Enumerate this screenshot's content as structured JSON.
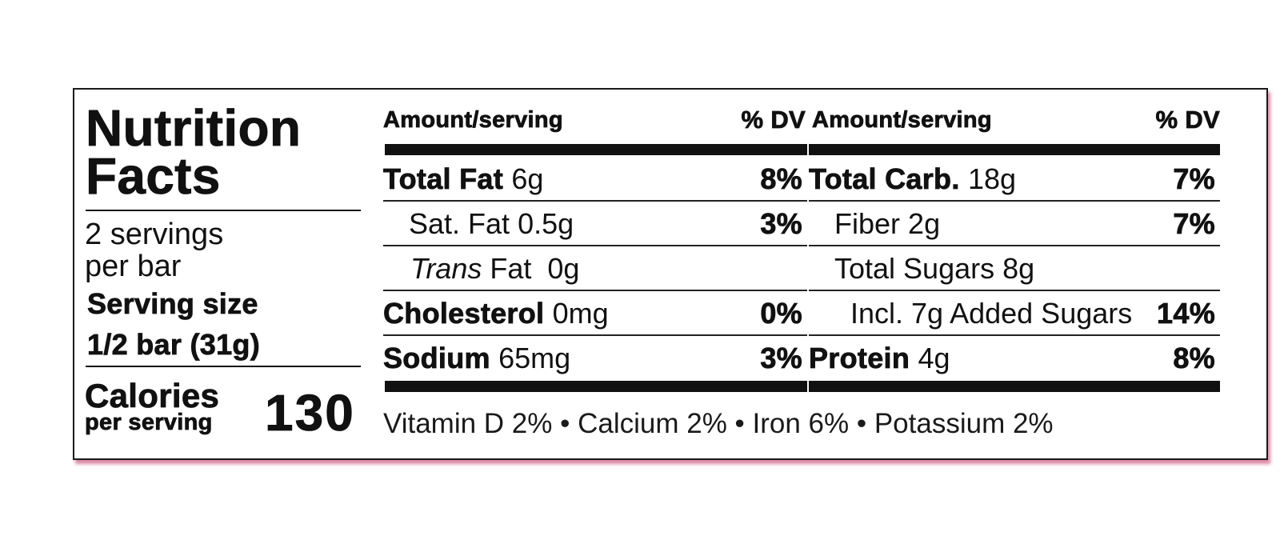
{
  "title": {
    "line1": "Nutrition",
    "line2": "Facts"
  },
  "servings": {
    "line1": "2 servings",
    "line2": "per bar"
  },
  "serving_size": {
    "label": "Serving size",
    "value": "1/2 bar (31g)"
  },
  "calories": {
    "label": "Calories",
    "sub": "per serving",
    "value": "130"
  },
  "columns": [
    {
      "amount_header": "Amount/serving",
      "dv_header": "% DV",
      "rows": [
        {
          "name": "Total Fat",
          "amount": "6g",
          "dv": "8%"
        },
        {
          "name": "Sat. Fat",
          "amount": "0.5g",
          "dv": "3%"
        },
        {
          "name_italic": "Trans",
          "name": "Fat",
          "amount": "0g",
          "dv": ""
        },
        {
          "name": "Cholesterol",
          "amount": "0mg",
          "dv": "0%"
        },
        {
          "name": "Sodium",
          "amount": "65mg",
          "dv": "3%"
        }
      ]
    },
    {
      "amount_header": "Amount/serving",
      "dv_header": "% DV",
      "rows": [
        {
          "name": "Total Carb.",
          "amount": "18g",
          "dv": "7%"
        },
        {
          "name": "Fiber",
          "amount": "2g",
          "dv": "7%"
        },
        {
          "name": "Total Sugars",
          "amount": "8g",
          "dv": ""
        },
        {
          "name": "Incl. 7g Added Sugars",
          "amount": "",
          "dv": "14%"
        },
        {
          "name": "Protein",
          "amount": "4g",
          "dv": "8%"
        }
      ]
    }
  ],
  "vitamins": "Vitamin D 2% • Calcium 2% • Iron 6% • Potassium 2%"
}
